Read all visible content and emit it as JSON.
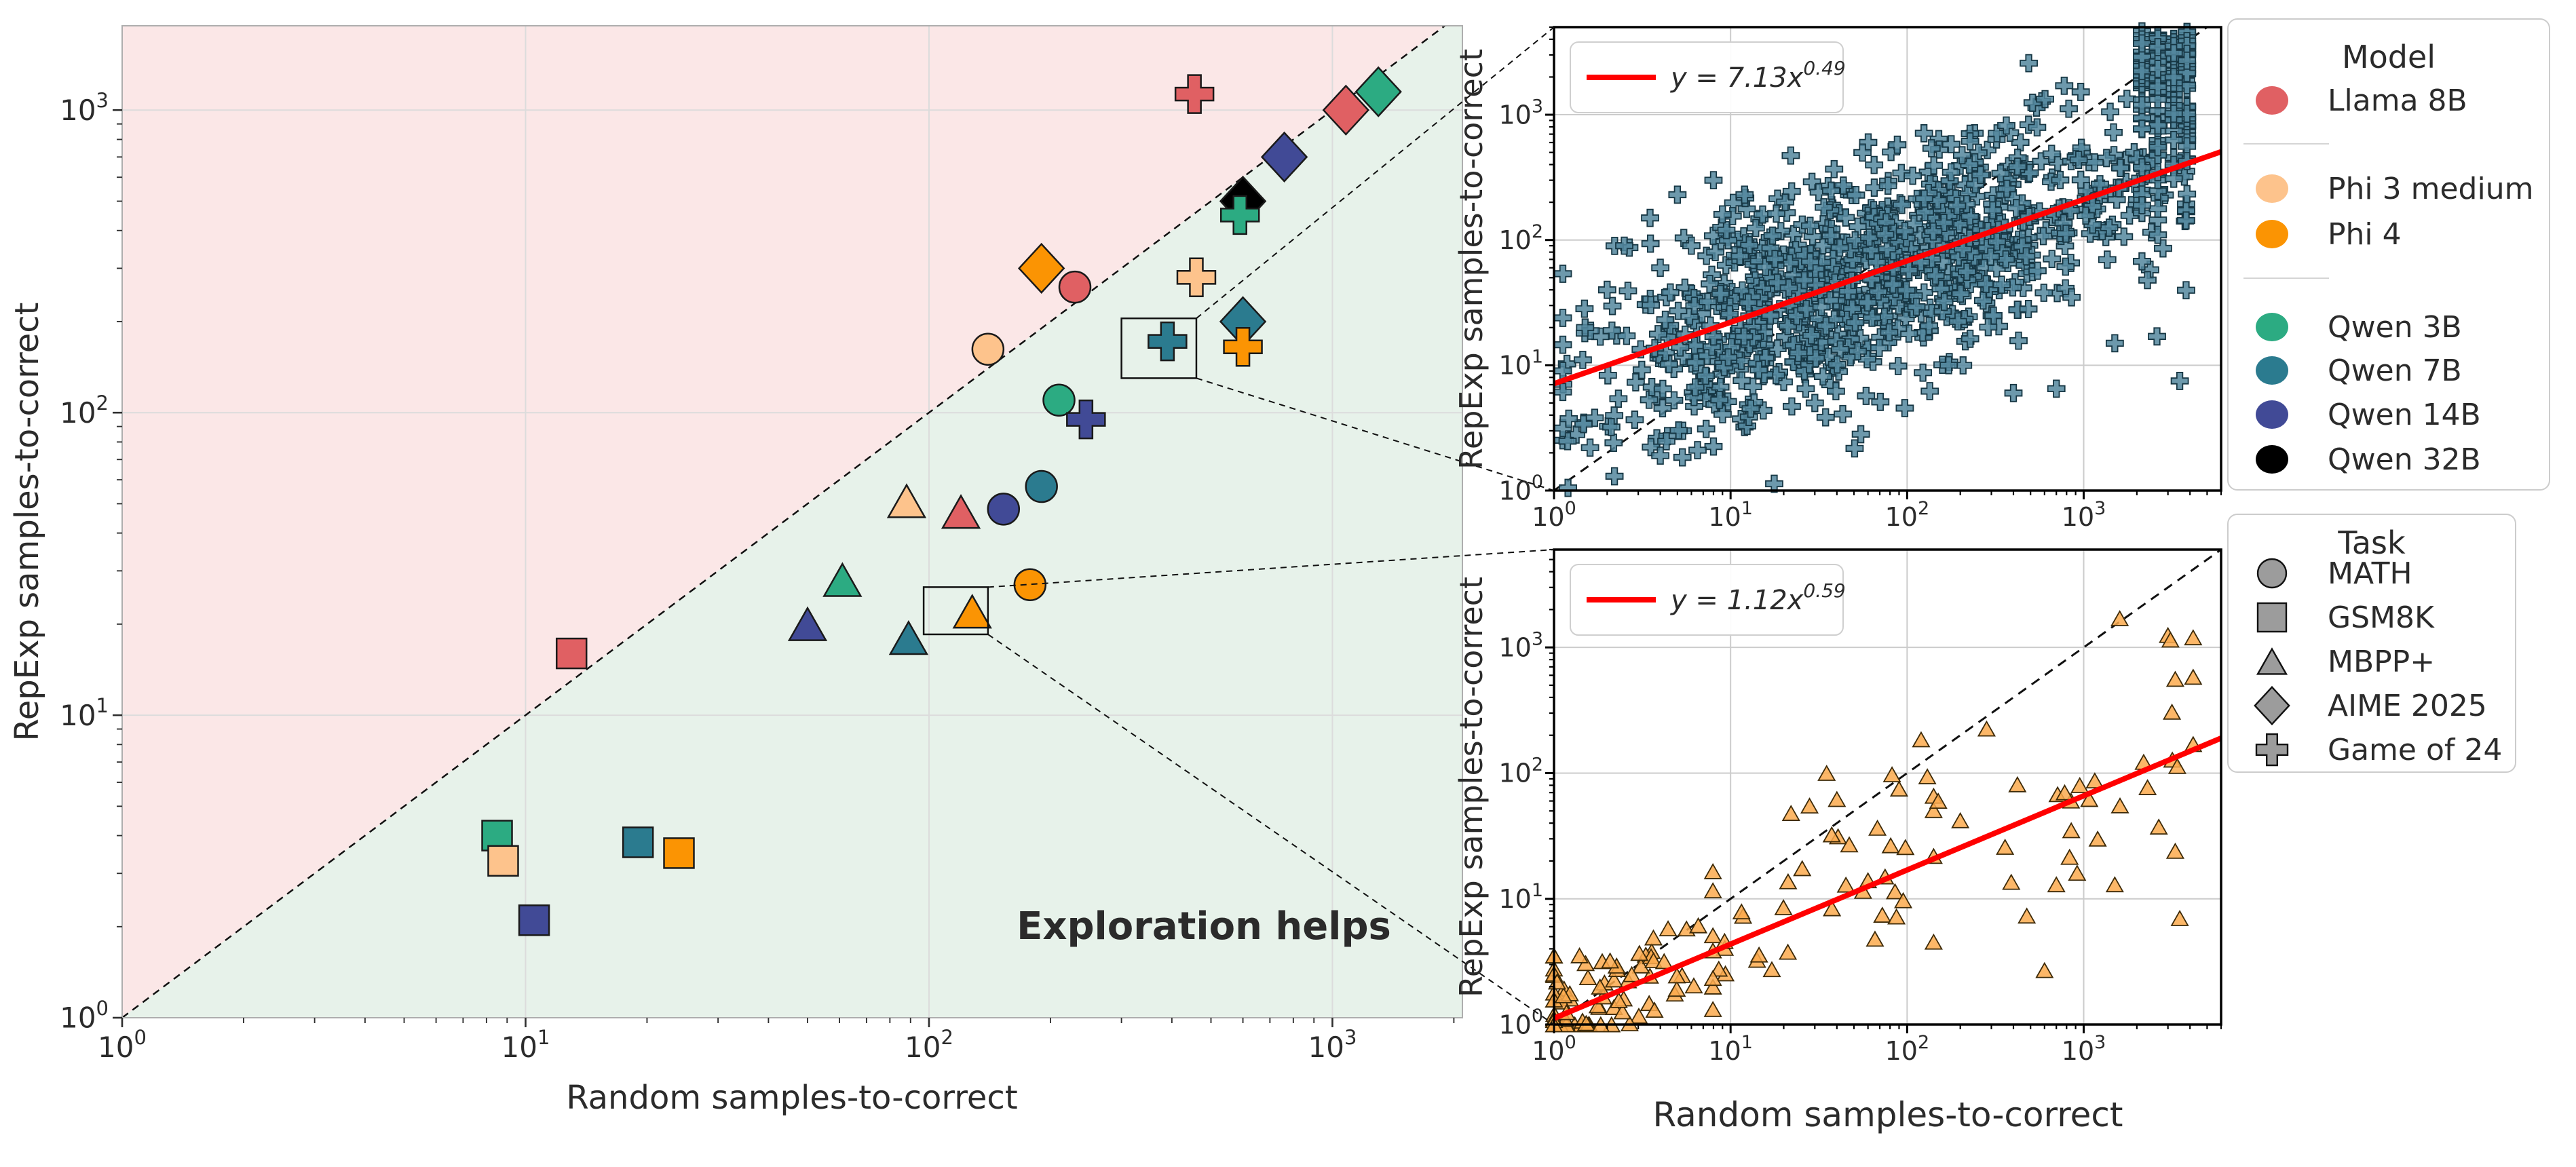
{
  "figure_title": "",
  "colors": {
    "pink_region": "#fbe7e7",
    "green_region": "#e7f2ea",
    "grid_main": "#dcdcdc",
    "grid_inset": "#cccccc",
    "diagonal": "#111111",
    "fit_line": "#ff0000",
    "annotation_green": "#3ca14c",
    "inset_top_marker": "#53879e",
    "inset_bottom_marker": "#fbaa4e",
    "task_legend_marker": "#9c9c9c"
  },
  "legend_model": {
    "title": "Model",
    "items": [
      {
        "label": "Llama 8B",
        "color": "#e06063",
        "group": 0
      },
      {
        "label": "Phi 3 medium",
        "color": "#fdc38c",
        "group": 1
      },
      {
        "label": "Phi 4",
        "color": "#fb9403",
        "group": 1
      },
      {
        "label": "Qwen 3B",
        "color": "#2cab82",
        "group": 2
      },
      {
        "label": "Qwen 7B",
        "color": "#2b7b8f",
        "group": 2
      },
      {
        "label": "Qwen 14B",
        "color": "#414a96",
        "group": 2
      },
      {
        "label": "Qwen 32B",
        "color": "#000000",
        "group": 2
      }
    ]
  },
  "legend_task": {
    "title": "Task",
    "items": [
      {
        "label": "MATH",
        "marker": "circle"
      },
      {
        "label": "GSM8K",
        "marker": "square"
      },
      {
        "label": "MBPP+",
        "marker": "triangle"
      },
      {
        "label": "AIME 2025",
        "marker": "diamond"
      },
      {
        "label": "Game of 24",
        "marker": "plus"
      }
    ]
  },
  "chart_data": [
    {
      "name": "main",
      "type": "scatter",
      "xlabel": "Random samples-to-correct",
      "ylabel": "RepExp samples-to-correct",
      "xscale": "log",
      "yscale": "log",
      "xlim": [
        1,
        2100
      ],
      "ylim": [
        1,
        1900
      ],
      "x_tick_exponents": [
        0,
        1,
        2,
        3
      ],
      "y_tick_exponents": [
        0,
        1,
        2,
        3
      ],
      "diagonal": "y = x (dashed)",
      "annotation": {
        "text": "Exploration helps",
        "x": 480,
        "y": 2.0
      },
      "points": [
        {
          "model": "Llama 8B",
          "task": "GSM8K",
          "x": 13,
          "y": 16
        },
        {
          "model": "Qwen 3B",
          "task": "GSM8K",
          "x": 8.5,
          "y": 4.0
        },
        {
          "model": "Phi 3 medium",
          "task": "GSM8K",
          "x": 8.8,
          "y": 3.3
        },
        {
          "model": "Qwen 7B",
          "task": "GSM8K",
          "x": 19,
          "y": 3.8
        },
        {
          "model": "Phi 4",
          "task": "GSM8K",
          "x": 24,
          "y": 3.5
        },
        {
          "model": "Qwen 14B",
          "task": "GSM8K",
          "x": 10.5,
          "y": 2.1
        },
        {
          "model": "Llama 8B",
          "task": "MBPP+",
          "x": 120,
          "y": 47
        },
        {
          "model": "Phi 3 medium",
          "task": "MBPP+",
          "x": 88,
          "y": 51
        },
        {
          "model": "Phi 4",
          "task": "MBPP+",
          "x": 128,
          "y": 22
        },
        {
          "model": "Qwen 3B",
          "task": "MBPP+",
          "x": 61,
          "y": 28
        },
        {
          "model": "Qwen 7B",
          "task": "MBPP+",
          "x": 89,
          "y": 18
        },
        {
          "model": "Qwen 14B",
          "task": "MBPP+",
          "x": 50,
          "y": 20
        },
        {
          "model": "Llama 8B",
          "task": "MATH",
          "x": 230,
          "y": 260
        },
        {
          "model": "Phi 3 medium",
          "task": "MATH",
          "x": 140,
          "y": 162
        },
        {
          "model": "Phi 4",
          "task": "MATH",
          "x": 178,
          "y": 27
        },
        {
          "model": "Qwen 3B",
          "task": "MATH",
          "x": 210,
          "y": 110
        },
        {
          "model": "Qwen 7B",
          "task": "MATH",
          "x": 190,
          "y": 57
        },
        {
          "model": "Qwen 14B",
          "task": "MATH",
          "x": 153,
          "y": 48
        },
        {
          "model": "Llama 8B",
          "task": "AIME 2025",
          "x": 1080,
          "y": 1000
        },
        {
          "model": "Phi 4",
          "task": "AIME 2025",
          "x": 190,
          "y": 300
        },
        {
          "model": "Qwen 3B",
          "task": "AIME 2025",
          "x": 1300,
          "y": 1150
        },
        {
          "model": "Qwen 7B",
          "task": "AIME 2025",
          "x": 600,
          "y": 200
        },
        {
          "model": "Qwen 14B",
          "task": "AIME 2025",
          "x": 760,
          "y": 700
        },
        {
          "model": "Qwen 32B",
          "task": "AIME 2025",
          "x": 600,
          "y": 500
        },
        {
          "model": "Llama 8B",
          "task": "Game of 24",
          "x": 455,
          "y": 1130
        },
        {
          "model": "Phi 3 medium",
          "task": "Game of 24",
          "x": 460,
          "y": 280
        },
        {
          "model": "Phi 4",
          "task": "Game of 24",
          "x": 600,
          "y": 165
        },
        {
          "model": "Qwen 3B",
          "task": "Game of 24",
          "x": 590,
          "y": 450
        },
        {
          "model": "Qwen 7B",
          "task": "Game of 24",
          "x": 390,
          "y": 172
        },
        {
          "model": "Qwen 14B",
          "task": "Game of 24",
          "x": 245,
          "y": 95
        }
      ],
      "zoom_boxes": [
        {
          "x": [
            300,
            460
          ],
          "y": [
            130,
            205
          ],
          "target": "inset_top"
        },
        {
          "x": [
            97,
            140
          ],
          "y": [
            18.5,
            26.5
          ],
          "target": "inset_bottom"
        }
      ]
    },
    {
      "name": "inset_top",
      "type": "scatter",
      "marker": "plus",
      "xlabel": "",
      "ylabel": "RepExp samples-to-correct",
      "xscale": "log",
      "yscale": "log",
      "xlim": [
        1,
        6000
      ],
      "ylim": [
        1,
        5000
      ],
      "x_tick_exponents": [
        0,
        1,
        2,
        3
      ],
      "y_tick_exponents": [
        0,
        1,
        2,
        3
      ],
      "fit": {
        "coef": 7.13,
        "exp": 0.49,
        "label_coef": "7.13",
        "label_exp": "0.49"
      },
      "diagonal": "y = x (dashed)",
      "scatter_points": "dense cloud (~1100 pts, unreadable individually) procedurally approximated",
      "procedural": {
        "seed": 42,
        "n_cloud": 950,
        "n_columns": 165,
        "cloud": {
          "logx_mean": 1.78,
          "logx_sd": 0.8,
          "logx_clip": [
            0.05,
            3.58
          ],
          "noise_sd": 0.43
        },
        "columns_logx": [
          3.33,
          3.42,
          3.51,
          3.585
        ],
        "columns_logy": [
          1.3,
          3.67
        ]
      },
      "anchors": [
        [
          1.2,
          1.05
        ],
        [
          1.6,
          2.2
        ],
        [
          2.2,
          1.3
        ],
        [
          4,
          1.9
        ],
        [
          6.5,
          2.1
        ],
        [
          13,
          4.5
        ],
        [
          30,
          5
        ],
        [
          3500,
          7.5
        ],
        [
          2600,
          17
        ],
        [
          1500,
          15
        ],
        [
          400,
          6
        ],
        [
          700,
          6.5
        ],
        [
          2.5,
          90
        ],
        [
          3.5,
          150
        ],
        [
          5,
          230
        ],
        [
          8,
          300
        ],
        [
          12,
          230
        ],
        [
          6,
          90
        ],
        [
          4,
          60
        ],
        [
          2,
          40
        ],
        [
          1.5,
          20
        ],
        [
          9,
          160
        ]
      ]
    },
    {
      "name": "inset_bottom",
      "type": "scatter",
      "marker": "triangle",
      "xlabel": "Random samples-to-correct",
      "ylabel": "RepExp samples-to-correct",
      "xscale": "log",
      "yscale": "log",
      "xlim": [
        1,
        6000
      ],
      "ylim": [
        1,
        6000
      ],
      "x_tick_exponents": [
        0,
        1,
        2,
        3
      ],
      "y_tick_exponents": [
        0,
        1,
        2,
        3
      ],
      "fit": {
        "coef": 1.12,
        "exp": 0.59,
        "label_coef": "1.12",
        "label_exp": "0.59"
      },
      "diagonal": "y = x (dashed)",
      "scatter_points": "~160 pts, dense near origin, procedurally approximated",
      "procedural": {
        "seed": 11,
        "n": 135,
        "clusters": [
          {
            "frac": 0.6,
            "logx_mean": 0.3,
            "logx_sd": 0.33,
            "logx_clip": [
              0.0,
              1.15
            ],
            "noise_sd": 0.22
          },
          {
            "frac": 0.25,
            "logx_mean": 1.4,
            "logx_sd": 0.42,
            "logx_clip": [
              0.9,
              2.15
            ],
            "noise_sd": 0.33
          },
          {
            "frac": 0.15,
            "logx_mean": 3.0,
            "logx_sd": 0.33,
            "logx_clip": [
              2.45,
              3.62
            ],
            "noise_sd": 0.5
          }
        ]
      },
      "anchors": [
        [
          1600,
          1700
        ],
        [
          3000,
          1250
        ],
        [
          3100,
          1150
        ],
        [
          3300,
          560
        ],
        [
          120,
          185
        ],
        [
          35,
          100
        ],
        [
          22,
          48
        ],
        [
          28,
          55
        ],
        [
          40,
          62
        ],
        [
          47,
          27
        ],
        [
          95,
          9.7
        ],
        [
          600,
          2.7
        ],
        [
          3500,
          7
        ],
        [
          3300,
          24
        ],
        [
          2300,
          77
        ],
        [
          1500,
          13
        ],
        [
          850,
          35
        ],
        [
          950,
          80
        ],
        [
          780,
          70
        ],
        [
          1200,
          30
        ],
        [
          700,
          13
        ],
        [
          200,
          42
        ],
        [
          150,
          60
        ],
        [
          90,
          75
        ],
        [
          60,
          14
        ],
        [
          75,
          15
        ]
      ]
    }
  ]
}
